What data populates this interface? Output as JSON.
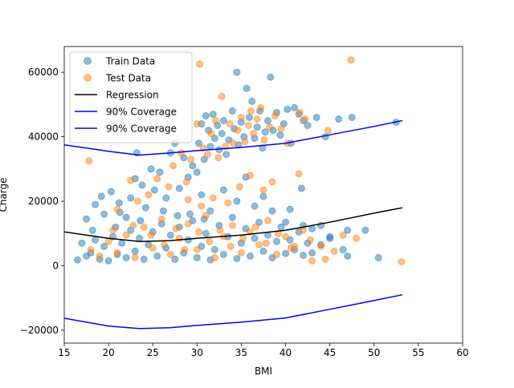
{
  "chart_data": {
    "type": "scatter",
    "title": "",
    "xlabel": "BMI",
    "ylabel": "Charge",
    "xlim": [
      15,
      60
    ],
    "ylim": [
      -24000,
      68000
    ],
    "xticks": [
      15,
      20,
      25,
      30,
      35,
      40,
      45,
      50,
      55,
      60
    ],
    "yticks": [
      -20000,
      0,
      20000,
      40000,
      60000
    ],
    "grid": false,
    "legend_position": "top-left",
    "legend": [
      {
        "label": "Train Data",
        "kind": "marker",
        "color": "#1f77b4"
      },
      {
        "label": "Test Data",
        "kind": "marker",
        "color": "#ff7f0e"
      },
      {
        "label": "Regression",
        "kind": "line",
        "color": "#000000"
      },
      {
        "label": "90% Coverage",
        "kind": "line",
        "color": "#0000ff"
      },
      {
        "label": "90% Coverage",
        "kind": "line",
        "color": "#0000ff"
      }
    ],
    "series": [
      {
        "name": "Train Data",
        "type": "scatter",
        "color": "#1f77b4",
        "alpha": 0.5,
        "points": [
          [
            17.5,
            14500
          ],
          [
            18.2,
            11000
          ],
          [
            18.5,
            19000
          ],
          [
            19.2,
            21500
          ],
          [
            19.5,
            16000
          ],
          [
            20.3,
            23000
          ],
          [
            20.8,
            12000
          ],
          [
            21.2,
            19500
          ],
          [
            22.0,
            15000
          ],
          [
            22.5,
            21000
          ],
          [
            23.0,
            27000
          ],
          [
            23.2,
            35000
          ],
          [
            23.8,
            25000
          ],
          [
            24.2,
            18000
          ],
          [
            24.8,
            30000
          ],
          [
            25.2,
            23500
          ],
          [
            25.8,
            29000
          ],
          [
            26.5,
            21000
          ],
          [
            27.0,
            35000
          ],
          [
            27.5,
            38000
          ],
          [
            28.0,
            24000
          ],
          [
            28.5,
            33500
          ],
          [
            29.0,
            27500
          ],
          [
            29.5,
            31000
          ],
          [
            30.0,
            29000
          ],
          [
            30.2,
            38000
          ],
          [
            30.5,
            44000
          ],
          [
            30.8,
            33000
          ],
          [
            31.0,
            46500
          ],
          [
            31.3,
            42000
          ],
          [
            31.5,
            37000
          ],
          [
            31.8,
            47000
          ],
          [
            32.0,
            39500
          ],
          [
            32.3,
            43500
          ],
          [
            32.5,
            36000
          ],
          [
            32.8,
            41000
          ],
          [
            33.0,
            45000
          ],
          [
            33.3,
            34500
          ],
          [
            33.6,
            39000
          ],
          [
            34.0,
            48000
          ],
          [
            34.2,
            42500
          ],
          [
            34.5,
            60000
          ],
          [
            34.7,
            37500
          ],
          [
            35.0,
            44500
          ],
          [
            35.3,
            40000
          ],
          [
            35.6,
            55000
          ],
          [
            35.9,
            46000
          ],
          [
            36.2,
            51000
          ],
          [
            36.5,
            39500
          ],
          [
            36.8,
            43000
          ],
          [
            37.1,
            48000
          ],
          [
            37.4,
            36500
          ],
          [
            37.7,
            41500
          ],
          [
            38.0,
            45000
          ],
          [
            38.3,
            58500
          ],
          [
            38.6,
            42000
          ],
          [
            39.0,
            47500
          ],
          [
            39.4,
            40500
          ],
          [
            39.8,
            44000
          ],
          [
            40.2,
            48500
          ],
          [
            40.6,
            38000
          ],
          [
            41.0,
            49000
          ],
          [
            41.5,
            47000
          ],
          [
            42.0,
            45000
          ],
          [
            42.5,
            43500
          ],
          [
            43.5,
            46000
          ],
          [
            44.5,
            40000
          ],
          [
            46.0,
            45500
          ],
          [
            47.5,
            46000
          ],
          [
            52.5,
            44500
          ],
          [
            30.5,
            22000
          ],
          [
            31.5,
            17000
          ],
          [
            33.0,
            23500
          ],
          [
            34.5,
            20000
          ],
          [
            35.5,
            27500
          ],
          [
            36.5,
            18500
          ],
          [
            37.5,
            21500
          ],
          [
            38.5,
            17000
          ],
          [
            40.5,
            17500
          ],
          [
            41.8,
            24000
          ],
          [
            40.0,
            13500
          ],
          [
            42.0,
            12500
          ],
          [
            43.0,
            11500
          ],
          [
            44.0,
            12500
          ],
          [
            45.0,
            9000
          ],
          [
            46.5,
            5000
          ],
          [
            47.0,
            11000
          ],
          [
            49.0,
            11000
          ],
          [
            50.5,
            2500
          ],
          [
            47.0,
            3000
          ],
          [
            16.5,
            1800
          ],
          [
            17.0,
            7000
          ],
          [
            17.5,
            3000
          ],
          [
            18.0,
            4000
          ],
          [
            18.5,
            8000
          ],
          [
            19.0,
            2000
          ],
          [
            19.5,
            6000
          ],
          [
            20.0,
            1500
          ],
          [
            20.5,
            9000
          ],
          [
            21.0,
            3500
          ],
          [
            21.5,
            7000
          ],
          [
            22.0,
            2500
          ],
          [
            22.5,
            11000
          ],
          [
            23.0,
            4500
          ],
          [
            23.5,
            8500
          ],
          [
            24.0,
            2000
          ],
          [
            24.5,
            6500
          ],
          [
            25.0,
            10500
          ],
          [
            25.5,
            3000
          ],
          [
            26.0,
            13000
          ],
          [
            26.5,
            5500
          ],
          [
            27.0,
            9500
          ],
          [
            27.5,
            2000
          ],
          [
            28.0,
            12000
          ],
          [
            28.5,
            4000
          ],
          [
            29.0,
            8000
          ],
          [
            29.5,
            14000
          ],
          [
            30.0,
            2500
          ],
          [
            30.5,
            6000
          ],
          [
            31.0,
            10000
          ],
          [
            31.5,
            1800
          ],
          [
            32.0,
            5000
          ],
          [
            32.5,
            12500
          ],
          [
            33.0,
            3500
          ],
          [
            33.5,
            9000
          ],
          [
            34.0,
            15000
          ],
          [
            34.5,
            2200
          ],
          [
            35.0,
            7000
          ],
          [
            35.5,
            11500
          ],
          [
            36.0,
            3000
          ],
          [
            36.5,
            8500
          ],
          [
            37.0,
            13500
          ],
          [
            37.5,
            4500
          ],
          [
            38.0,
            9500
          ],
          [
            38.5,
            2500
          ],
          [
            39.0,
            7500
          ],
          [
            39.5,
            12000
          ],
          [
            40.0,
            3800
          ],
          [
            40.5,
            8000
          ],
          [
            41.0,
            5000
          ],
          [
            41.5,
            10500
          ],
          [
            42.0,
            3200
          ],
          [
            42.5,
            7000
          ],
          [
            43.0,
            4000
          ],
          [
            44.0,
            6500
          ],
          [
            45.0,
            8500
          ],
          [
            21.3,
            16500
          ],
          [
            23.6,
            14000
          ],
          [
            26.2,
            17000
          ],
          [
            27.8,
            15500
          ],
          [
            29.2,
            16000
          ],
          [
            30.8,
            14500
          ]
        ]
      },
      {
        "name": "Test Data",
        "type": "scatter",
        "color": "#ff7f0e",
        "alpha": 0.5,
        "points": [
          [
            17.8,
            32500
          ],
          [
            21.0,
            17500
          ],
          [
            22.5,
            26500
          ],
          [
            23.3,
            20000
          ],
          [
            24.5,
            22000
          ],
          [
            25.5,
            27000
          ],
          [
            26.8,
            24500
          ],
          [
            27.3,
            31000
          ],
          [
            28.2,
            35000
          ],
          [
            28.8,
            26000
          ],
          [
            29.3,
            33000
          ],
          [
            30.0,
            44000
          ],
          [
            30.3,
            62500
          ],
          [
            30.7,
            36500
          ],
          [
            31.2,
            34500
          ],
          [
            31.6,
            41000
          ],
          [
            32.1,
            45000
          ],
          [
            32.4,
            33500
          ],
          [
            32.8,
            52500
          ],
          [
            33.2,
            37000
          ],
          [
            33.7,
            44000
          ],
          [
            34.1,
            38000
          ],
          [
            34.6,
            42000
          ],
          [
            35.0,
            46000
          ],
          [
            35.4,
            38500
          ],
          [
            35.8,
            43500
          ],
          [
            36.1,
            48000
          ],
          [
            36.4,
            41000
          ],
          [
            36.8,
            45500
          ],
          [
            37.2,
            49000
          ],
          [
            37.6,
            39000
          ],
          [
            38.2,
            43000
          ],
          [
            38.8,
            46500
          ],
          [
            39.5,
            42500
          ],
          [
            40.2,
            38000
          ],
          [
            41.6,
            47500
          ],
          [
            42.2,
            45500
          ],
          [
            44.8,
            42000
          ],
          [
            47.4,
            63800
          ],
          [
            53.1,
            1200
          ],
          [
            29.0,
            20500
          ],
          [
            30.5,
            18500
          ],
          [
            31.8,
            21000
          ],
          [
            33.5,
            19500
          ],
          [
            34.8,
            24500
          ],
          [
            36.0,
            28000
          ],
          [
            37.5,
            23500
          ],
          [
            38.5,
            26000
          ],
          [
            41.5,
            28500
          ],
          [
            18.0,
            5000
          ],
          [
            19.0,
            3000
          ],
          [
            20.0,
            7500
          ],
          [
            21.0,
            4000
          ],
          [
            22.0,
            9500
          ],
          [
            23.0,
            2500
          ],
          [
            24.0,
            12000
          ],
          [
            25.0,
            5500
          ],
          [
            26.0,
            14500
          ],
          [
            27.0,
            3500
          ],
          [
            28.0,
            8500
          ],
          [
            29.0,
            13000
          ],
          [
            30.0,
            5000
          ],
          [
            31.0,
            15500
          ],
          [
            32.0,
            2500
          ],
          [
            33.0,
            9000
          ],
          [
            34.0,
            12500
          ],
          [
            35.0,
            4000
          ],
          [
            36.0,
            10500
          ],
          [
            37.0,
            6500
          ],
          [
            38.0,
            14000
          ],
          [
            39.0,
            3500
          ],
          [
            40.0,
            9000
          ],
          [
            41.0,
            6000
          ],
          [
            42.0,
            11000
          ],
          [
            43.0,
            1500
          ],
          [
            44.0,
            6000
          ],
          [
            45.5,
            4500
          ],
          [
            46.5,
            9500
          ],
          [
            48.0,
            8500
          ],
          [
            22.8,
            12500
          ],
          [
            24.8,
            9500
          ],
          [
            26.3,
            6500
          ],
          [
            27.6,
            11500
          ],
          [
            28.6,
            5000
          ],
          [
            30.2,
            10500
          ],
          [
            31.4,
            7500
          ],
          [
            32.6,
            11000
          ],
          [
            33.8,
            6000
          ],
          [
            35.2,
            8500
          ],
          [
            36.6,
            12000
          ],
          [
            37.8,
            7000
          ],
          [
            39.2,
            10000
          ],
          [
            40.6,
            5500
          ],
          [
            42.8,
            8000
          ],
          [
            44.5,
            2000
          ],
          [
            20.5,
            11000
          ]
        ]
      }
    ],
    "lines": [
      {
        "name": "Regression",
        "color": "#000000",
        "points": [
          [
            15,
            10500
          ],
          [
            20,
            8500
          ],
          [
            23.5,
            7500
          ],
          [
            27,
            7800
          ],
          [
            30,
            8500
          ],
          [
            35,
            9500
          ],
          [
            40,
            11000
          ],
          [
            45,
            13500
          ],
          [
            50,
            16300
          ],
          [
            53.2,
            18000
          ]
        ]
      },
      {
        "name": "90% Coverage",
        "color": "#0000ff",
        "points": [
          [
            15,
            37500
          ],
          [
            20,
            35500
          ],
          [
            23.5,
            34300
          ],
          [
            27,
            35000
          ],
          [
            30,
            35700
          ],
          [
            35,
            36700
          ],
          [
            40,
            38000
          ],
          [
            45,
            40600
          ],
          [
            50,
            43200
          ],
          [
            53.2,
            45000
          ]
        ]
      },
      {
        "name": "90% Coverage",
        "color": "#0000ff",
        "points": [
          [
            15,
            -16300
          ],
          [
            20,
            -18700
          ],
          [
            23.5,
            -19500
          ],
          [
            27,
            -19200
          ],
          [
            30,
            -18500
          ],
          [
            35,
            -17500
          ],
          [
            40,
            -16200
          ],
          [
            45,
            -13500
          ],
          [
            50,
            -10800
          ],
          [
            53.2,
            -9000
          ]
        ]
      }
    ]
  }
}
